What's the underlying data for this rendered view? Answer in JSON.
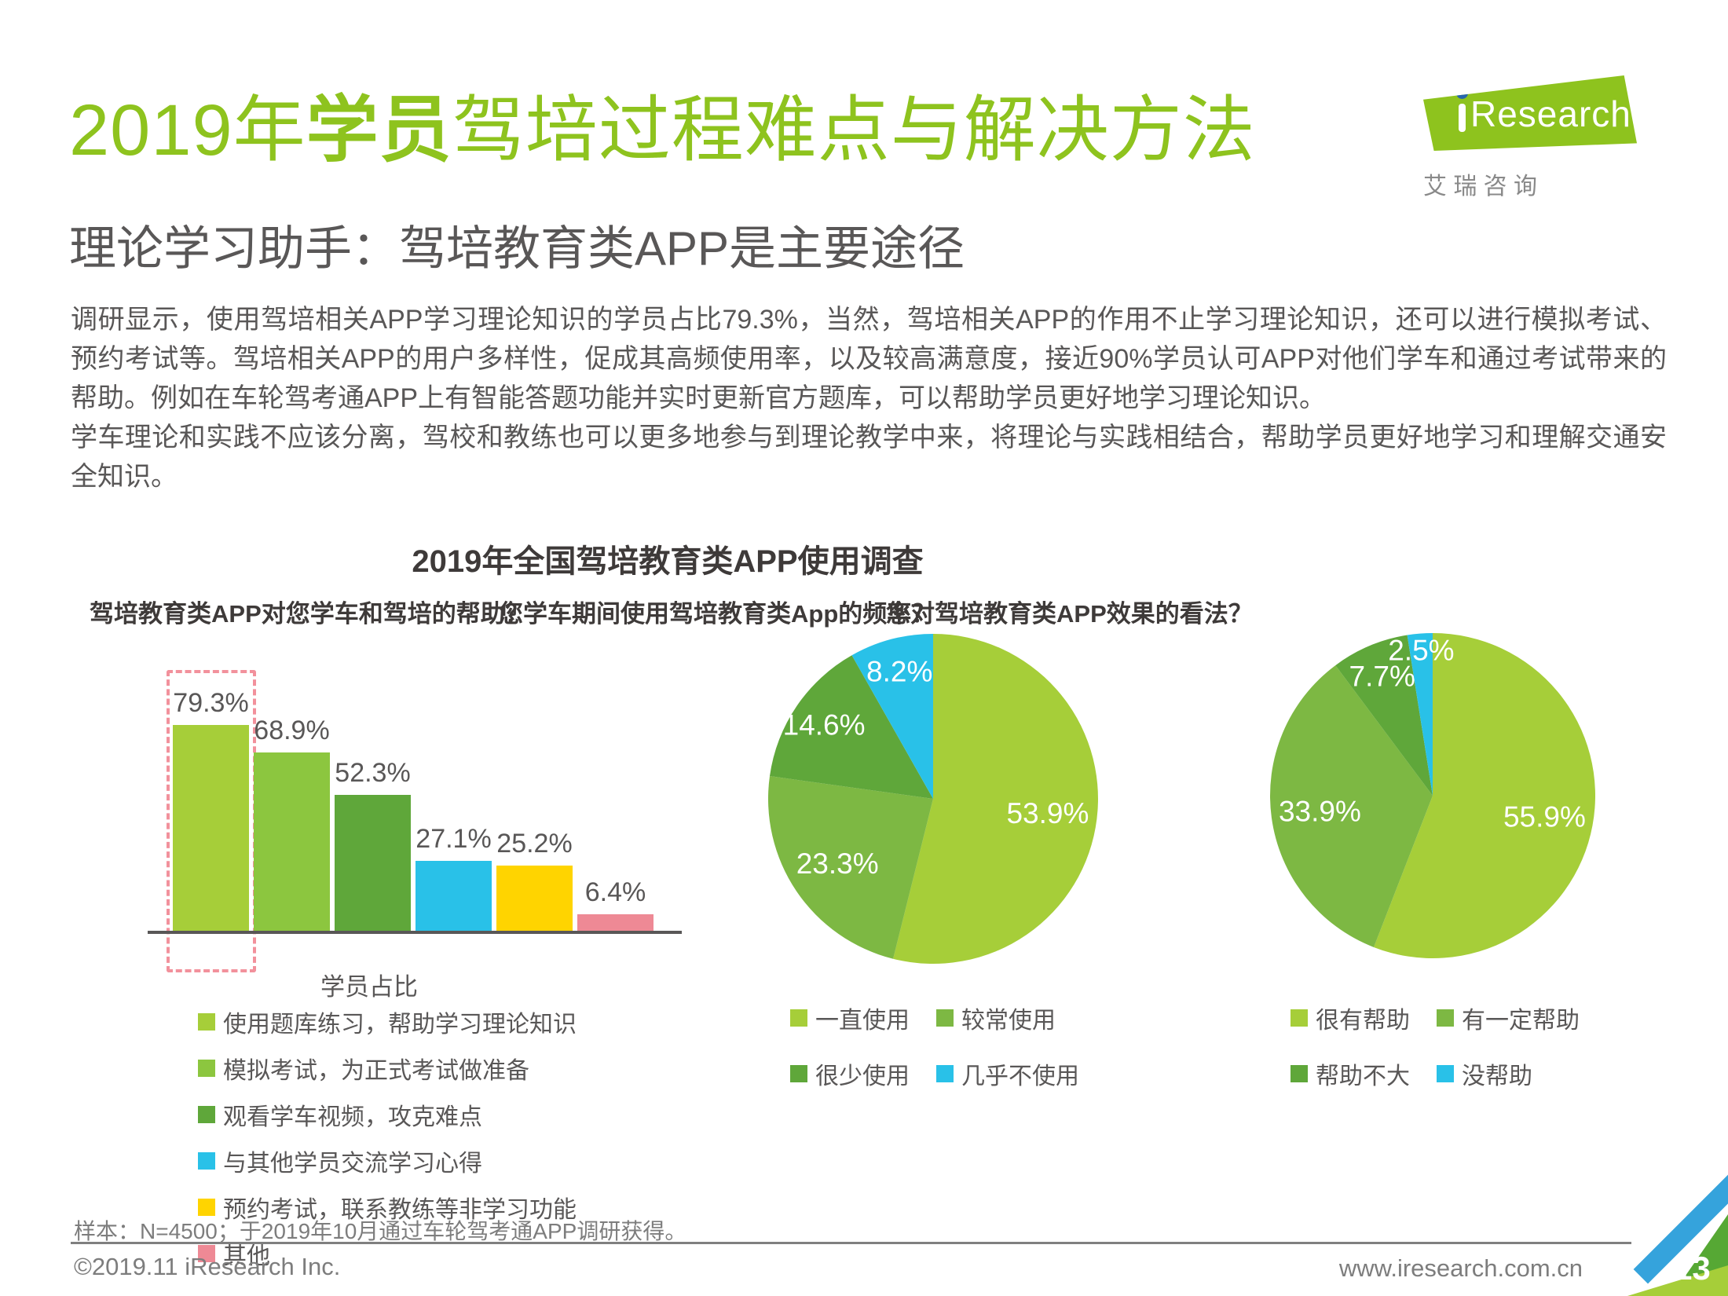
{
  "page": {
    "title_prefix": "2019年",
    "title_bold": "学员",
    "title_suffix": "驾培过程难点与解决方法",
    "subtitle": "理论学习助手：驾培教育类APP是主要途径",
    "paragraph1": "调研显示，使用驾培相关APP学习理论知识的学员占比79.3%，当然，驾培相关APP的作用不止学习理论知识，还可以进行模拟考试、预约考试等。驾培相关APP的用户多样性，促成其高频使用率，以及较高满意度，接近90%学员认可APP对他们学车和通过考试带来的帮助。例如在车轮驾考通APP上有智能答题功能并实时更新官方题库，可以帮助学员更好地学习理论知识。",
    "paragraph2": "学车理论和实践不应该分离，驾校和教练也可以更多地参与到理论教学中来，将理论与实践相结合，帮助学员更好地学习和理解交通安全知识。",
    "footnote": "样本：N=4500；于2019年10月通过车轮驾考通APP调研获得。",
    "copyright": "©2019.11 iResearch Inc.",
    "website": "www.iresearch.com.cn",
    "page_number": "13"
  },
  "logo": {
    "brand": "Research",
    "brand_cn": "艾 瑞 咨 询"
  },
  "survey_title": "2019年全国驾培教育类APP使用调查",
  "chart_data": [
    {
      "type": "bar",
      "title": "驾培教育类APP对您学车和驾培的帮助？",
      "xlabel": "学员占比",
      "unit": "%",
      "categories": [
        "使用题库练习，帮助学习理论知识",
        "模拟考试，为正式考试做准备",
        "观看学车视频，攻克难点",
        "与其他学员交流学习心得",
        "预约考试，联系教练等非学习功能",
        "其他"
      ],
      "values": [
        79.3,
        68.9,
        52.3,
        27.1,
        25.2,
        6.4
      ],
      "colors": [
        "#a6ce39",
        "#8cc63f",
        "#5fa73a",
        "#29c1e8",
        "#ffd400",
        "#ee8995"
      ],
      "highlight_index": 0,
      "legend_position": "bottom"
    },
    {
      "type": "pie",
      "title": "您学车期间使用驾培教育类App的频率？",
      "unit": "%",
      "categories": [
        "一直使用",
        "较常使用",
        "很少使用",
        "几乎不使用"
      ],
      "values": [
        53.9,
        23.3,
        14.6,
        8.2
      ],
      "colors": [
        "#a6ce39",
        "#7db843",
        "#5fa73a",
        "#29c1e8"
      ],
      "legend_position": "bottom"
    },
    {
      "type": "pie",
      "title": "您对驾培教育类APP效果的看法？",
      "unit": "%",
      "categories": [
        "很有帮助",
        "有一定帮助",
        "帮助不大",
        "没帮助"
      ],
      "values": [
        55.9,
        33.9,
        7.7,
        2.5
      ],
      "colors": [
        "#a6ce39",
        "#7db843",
        "#5fa73a",
        "#29c1e8"
      ],
      "legend_position": "bottom"
    }
  ],
  "colors": {
    "brand_green": "#8ec31e",
    "text_dark": "#595757",
    "heading_dark": "#3e3a39",
    "footer_gray": "#7d7d7d",
    "highlight_dashed": "#f2919c",
    "corner_blue": "#35a3dc",
    "corner_green_dark": "#56a834",
    "corner_green_light": "#a6ce39"
  }
}
